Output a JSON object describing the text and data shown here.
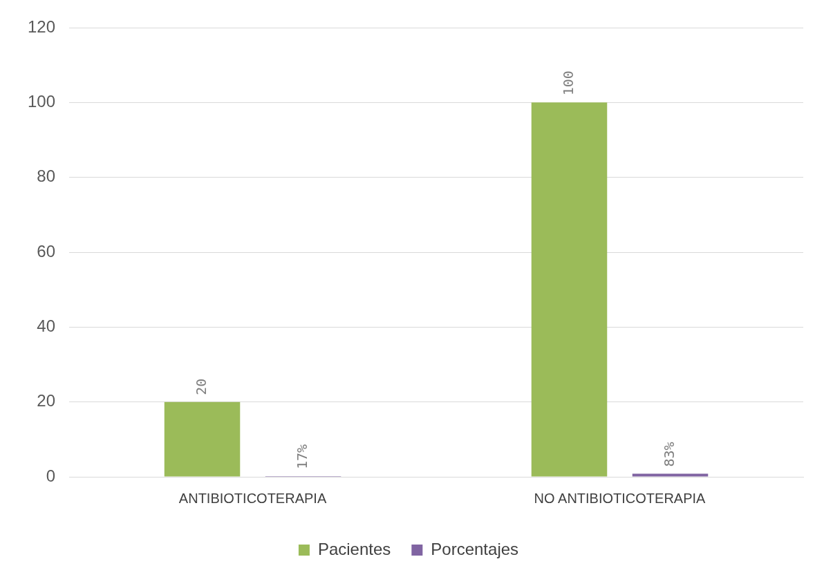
{
  "chart_data": {
    "type": "bar",
    "categories": [
      "ANTIBIOTICOTERAPIA",
      "NO ANTIBIOTICOTERAPIA"
    ],
    "series": [
      {
        "name": "Pacientes",
        "color": "#9bbb59",
        "values": [
          20,
          100
        ],
        "value_labels": [
          "20",
          "100"
        ]
      },
      {
        "name": "Porcentajes",
        "color": "#8064a2",
        "values": [
          0.17,
          0.83
        ],
        "value_labels": [
          "17%",
          "83%"
        ]
      }
    ],
    "ylim": [
      0,
      120
    ],
    "yticks": [
      0,
      20,
      40,
      60,
      80,
      100,
      120
    ],
    "grid": "y",
    "legend": "bottom"
  }
}
